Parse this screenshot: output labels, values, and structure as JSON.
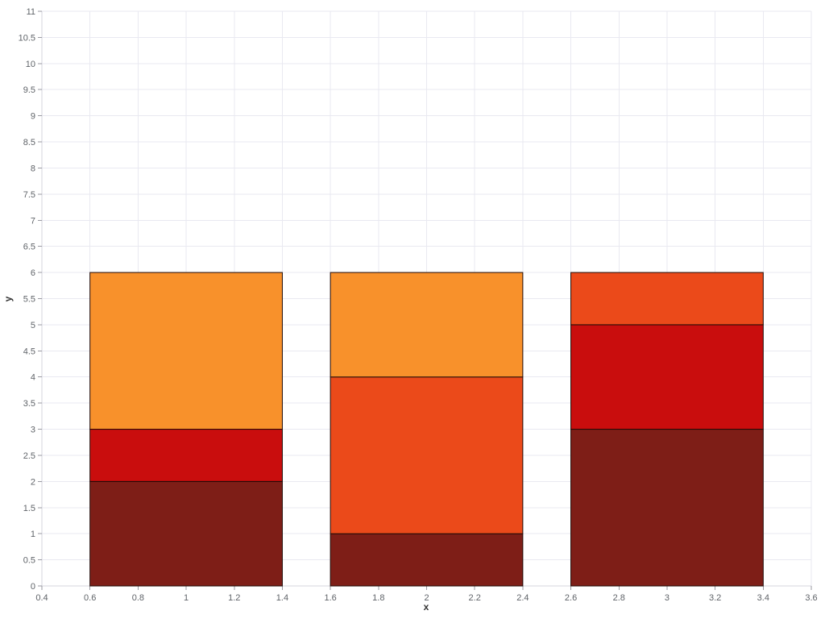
{
  "chart_data": {
    "type": "bar",
    "stacked": true,
    "title": "",
    "xlabel": "x",
    "ylabel": "y",
    "xlim": [
      0.4,
      3.6
    ],
    "ylim": [
      0,
      11
    ],
    "grid": true,
    "legend": false,
    "x": [
      1,
      2,
      3
    ],
    "bar_width": 0.8,
    "x_ticks": [
      "0.4",
      "0.6",
      "0.8",
      "1",
      "1.2",
      "1.4",
      "1.6",
      "1.8",
      "2",
      "2.2",
      "2.4",
      "2.6",
      "2.8",
      "3",
      "3.2",
      "3.4",
      "3.6"
    ],
    "y_ticks": [
      "0",
      "0.5",
      "1",
      "1.5",
      "2",
      "2.5",
      "3",
      "3.5",
      "4",
      "4.5",
      "5",
      "5.5",
      "6",
      "6.5",
      "7",
      "7.5",
      "8",
      "8.5",
      "9",
      "9.5",
      "10",
      "10.5",
      "11"
    ],
    "series": [
      {
        "color": "#7E1E17",
        "values": [
          2,
          1,
          3
        ]
      },
      {
        "color": "#C90D0D",
        "values": [
          1,
          0,
          2
        ]
      },
      {
        "color": "#EB4A1A",
        "values": [
          0,
          3,
          1
        ]
      },
      {
        "color": "#F8912B",
        "values": [
          3,
          2,
          0
        ]
      }
    ]
  }
}
